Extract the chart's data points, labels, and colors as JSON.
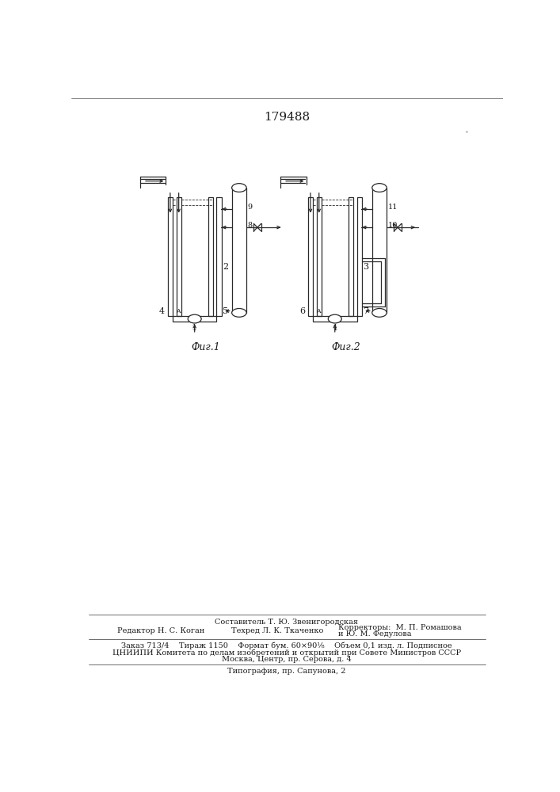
{
  "title": "179488",
  "fig1_label": "Фиг.1",
  "fig2_label": "Фиг.2",
  "footer_line1": "Составитель Т. Ю. Звенигородская",
  "footer_line2_left": "Редактор Н. С. Коган",
  "footer_line2_mid": "Техред Л. К. Ткаченко",
  "footer_line2_right": "Корректоры:  М. П. Ромашова",
  "footer_line2_right2": "и Ю. М. Федулова",
  "footer_line3": "Заказ 713/4    Тираж 1150    Формат бум. 60×90¹⁄₈    Объем 0,1 изд. л. Подписное",
  "footer_line4": "ЦНИИПИ Комитета по делам изобретений и открытий при Совете Министров СССР",
  "footer_line5": "Москва, Центр, пр. Серова, д. 4",
  "footer_line6": "Типография, пр. Сапунова, 2",
  "bg_color": "#ffffff",
  "line_color": "#2a2a2a",
  "text_color": "#1a1a1a"
}
